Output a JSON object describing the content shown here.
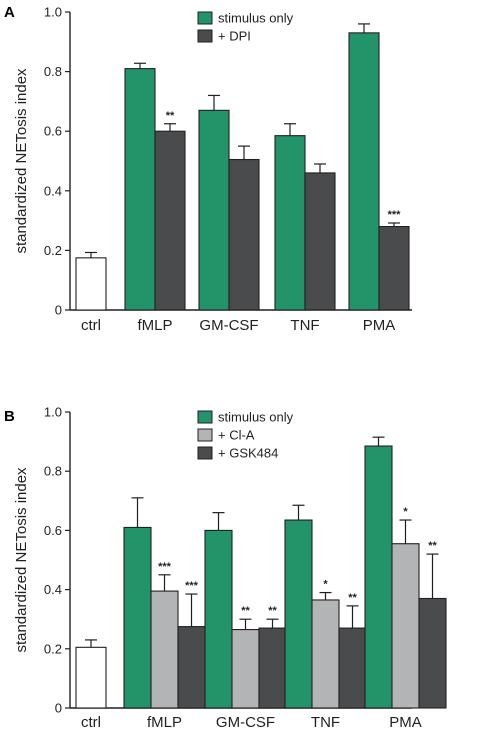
{
  "chart_data": [
    {
      "type": "bar",
      "panel_label": "A",
      "ylabel": "standardized NETosis index",
      "ylim": [
        0,
        1.0
      ],
      "yticks": [
        "0",
        "0.2",
        "0.4",
        "0.6",
        "0.8",
        "1.0"
      ],
      "control": {
        "label": "ctrl",
        "value": 0.175,
        "error": 0.018,
        "color": "#ffffff"
      },
      "categories": [
        "fMLP",
        "GM-CSF",
        "TNF",
        "PMA"
      ],
      "series": [
        {
          "name": "stimulus only",
          "color": "#23936a",
          "values": [
            0.81,
            0.67,
            0.585,
            0.93
          ],
          "errors": [
            0.018,
            0.05,
            0.04,
            0.03
          ],
          "significance": [
            "",
            "",
            "",
            ""
          ]
        },
        {
          "name": "+ DPI",
          "color": "#4a4b4d",
          "values": [
            0.6,
            0.505,
            0.46,
            0.28
          ],
          "errors": [
            0.025,
            0.045,
            0.03,
            0.012
          ],
          "significance": [
            "**",
            "",
            "",
            "***"
          ]
        }
      ]
    },
    {
      "type": "bar",
      "panel_label": "B",
      "ylabel": "standardized NETosis index",
      "ylim": [
        0,
        1.0
      ],
      "yticks": [
        "0",
        "0.2",
        "0.4",
        "0.6",
        "0.8",
        "1.0"
      ],
      "control": {
        "label": "ctrl",
        "value": 0.205,
        "error": 0.025,
        "color": "#ffffff"
      },
      "categories": [
        "fMLP",
        "GM-CSF",
        "TNF",
        "PMA"
      ],
      "series": [
        {
          "name": "stimulus only",
          "color": "#23936a",
          "values": [
            0.61,
            0.6,
            0.635,
            0.885
          ],
          "errors": [
            0.1,
            0.06,
            0.05,
            0.03
          ],
          "significance": [
            "",
            "",
            "",
            ""
          ]
        },
        {
          "name": "+ Cl-A",
          "color": "#b3b4b6",
          "values": [
            0.395,
            0.265,
            0.365,
            0.555
          ],
          "errors": [
            0.055,
            0.035,
            0.025,
            0.08
          ],
          "significance": [
            "***",
            "**",
            "*",
            "*"
          ]
        },
        {
          "name": "+ GSK484",
          "color": "#4a4b4d",
          "values": [
            0.275,
            0.27,
            0.27,
            0.37
          ],
          "errors": [
            0.11,
            0.03,
            0.075,
            0.15
          ],
          "significance": [
            "***",
            "**",
            "**",
            "**"
          ]
        }
      ]
    }
  ]
}
